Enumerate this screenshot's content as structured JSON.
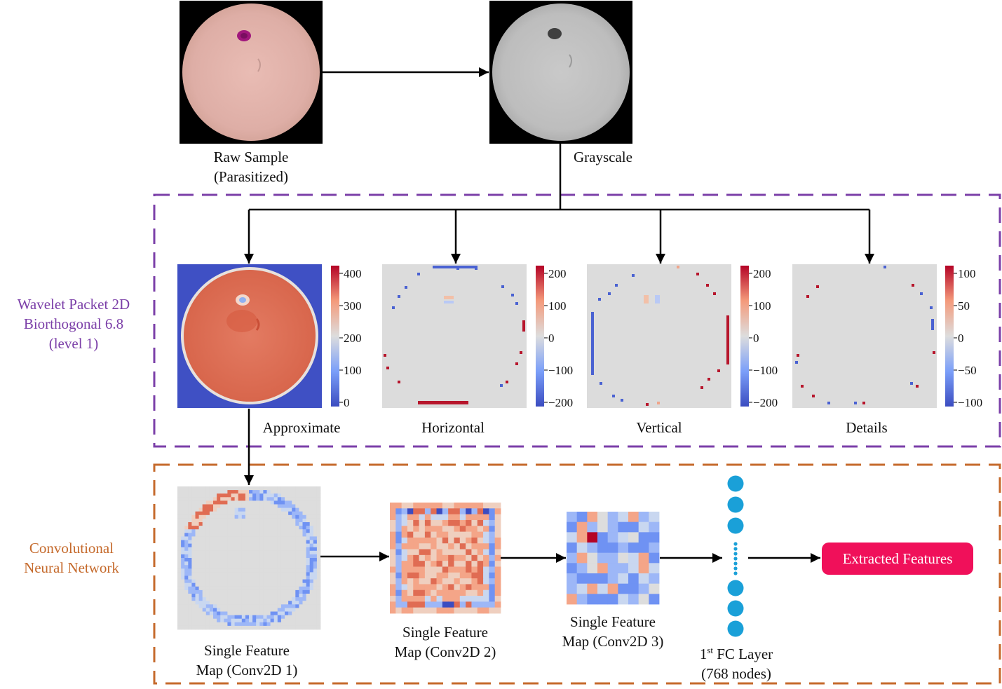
{
  "colors": {
    "wavelet_box": "#7b3fa8",
    "cnn_box": "#c56a2c",
    "arrow": "#000000",
    "node": "#1aa0d8",
    "pill": "#f0105a",
    "coolwarm_low": "#3b4cc0",
    "coolwarm_mid": "#dddddd",
    "coolwarm_high": "#b40426"
  },
  "top": {
    "raw_label_1": "Raw Sample",
    "raw_label_2": "(Parasitized)",
    "gray_label": "Grayscale"
  },
  "wavelet": {
    "title_1": "Wavelet Packet 2D",
    "title_2": "Biorthogonal 6.8",
    "title_3": "(level 1)",
    "panels": [
      {
        "label": "Approximate",
        "ticks": [
          "400",
          "300",
          "200",
          "100",
          "0"
        ]
      },
      {
        "label": "Horizontal",
        "ticks": [
          "200",
          "100",
          "0",
          "−100",
          "−200"
        ]
      },
      {
        "label": "Vertical",
        "ticks": [
          "200",
          "100",
          "0",
          "−100",
          "−200"
        ]
      },
      {
        "label": "Details",
        "ticks": [
          "100",
          "50",
          "0",
          "−50",
          "−100"
        ]
      }
    ]
  },
  "cnn": {
    "title_1": "Convolutional",
    "title_2": "Neural Network",
    "map1_1": "Single Feature",
    "map1_2": "Map (Conv2D 1)",
    "map2_1": "Single Feature",
    "map2_2": "Map (Conv2D 2)",
    "map3_1": "Single Feature",
    "map3_2": "Map (Conv2D 3)",
    "fc_prefix": "1",
    "fc_sup": "st",
    "fc_rest": " FC Layer",
    "fc_nodes": "(768 nodes)",
    "output": "Extracted Features"
  }
}
